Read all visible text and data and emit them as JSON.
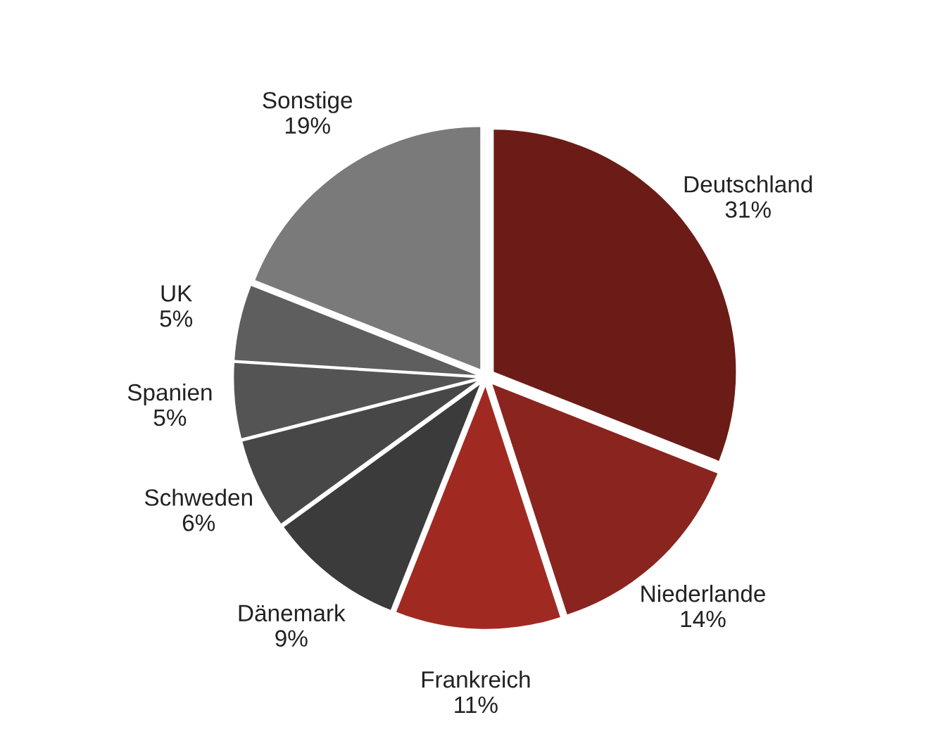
{
  "chart_data": {
    "type": "pie",
    "categories": [
      "Deutschland",
      "Niederlande",
      "Frankreich",
      "Dänemark",
      "Schweden",
      "Spanien",
      "UK",
      "Sonstige"
    ],
    "values": [
      31,
      14,
      11,
      9,
      6,
      5,
      5,
      19
    ],
    "value_labels": [
      "31%",
      "14%",
      "11%",
      "9%",
      "6%",
      "5%",
      "5%",
      "19%"
    ],
    "colors": [
      "#6b1c17",
      "#8a241f",
      "#a02a22",
      "#3b3b3b",
      "#474747",
      "#545454",
      "#5e5e5e",
      "#7a7a7a"
    ],
    "legend": false
  }
}
